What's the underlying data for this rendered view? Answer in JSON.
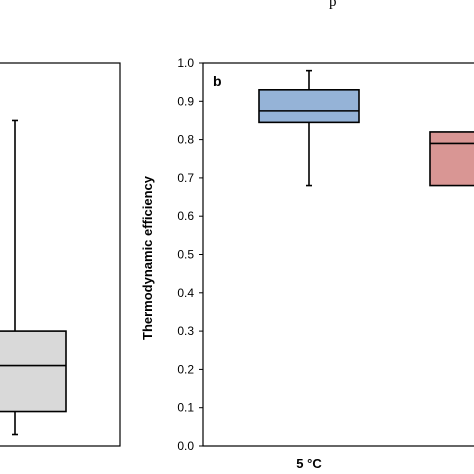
{
  "caption_fragment": "p",
  "chart_data": [
    {
      "type": "box",
      "panel_label": "",
      "series": [
        {
          "name": "",
          "whisker_low": 0.03,
          "q1": 0.09,
          "median": 0.21,
          "q3": 0.3,
          "whisker_high": 0.85,
          "color": "#d9d9d9"
        }
      ]
    },
    {
      "type": "box",
      "panel_label": "b",
      "ylabel": "Thermodynamic efficiency",
      "ylim": [
        0.0,
        1.0
      ],
      "yticks": [
        "0.0",
        "0.1",
        "0.2",
        "0.3",
        "0.4",
        "0.5",
        "0.6",
        "0.7",
        "0.8",
        "0.9",
        "1.0"
      ],
      "categories": [
        "5 °C"
      ],
      "series": [
        {
          "name": "5 °C",
          "whisker_low": 0.68,
          "q1": 0.845,
          "median": 0.875,
          "q3": 0.93,
          "whisker_high": 0.98,
          "color": "#95b3d7"
        },
        {
          "name": "",
          "whisker_low": 0.68,
          "q1": 0.68,
          "median": 0.79,
          "q3": 0.82,
          "whisker_high": 0.82,
          "color": "#d99694"
        }
      ],
      "grid": false
    }
  ]
}
